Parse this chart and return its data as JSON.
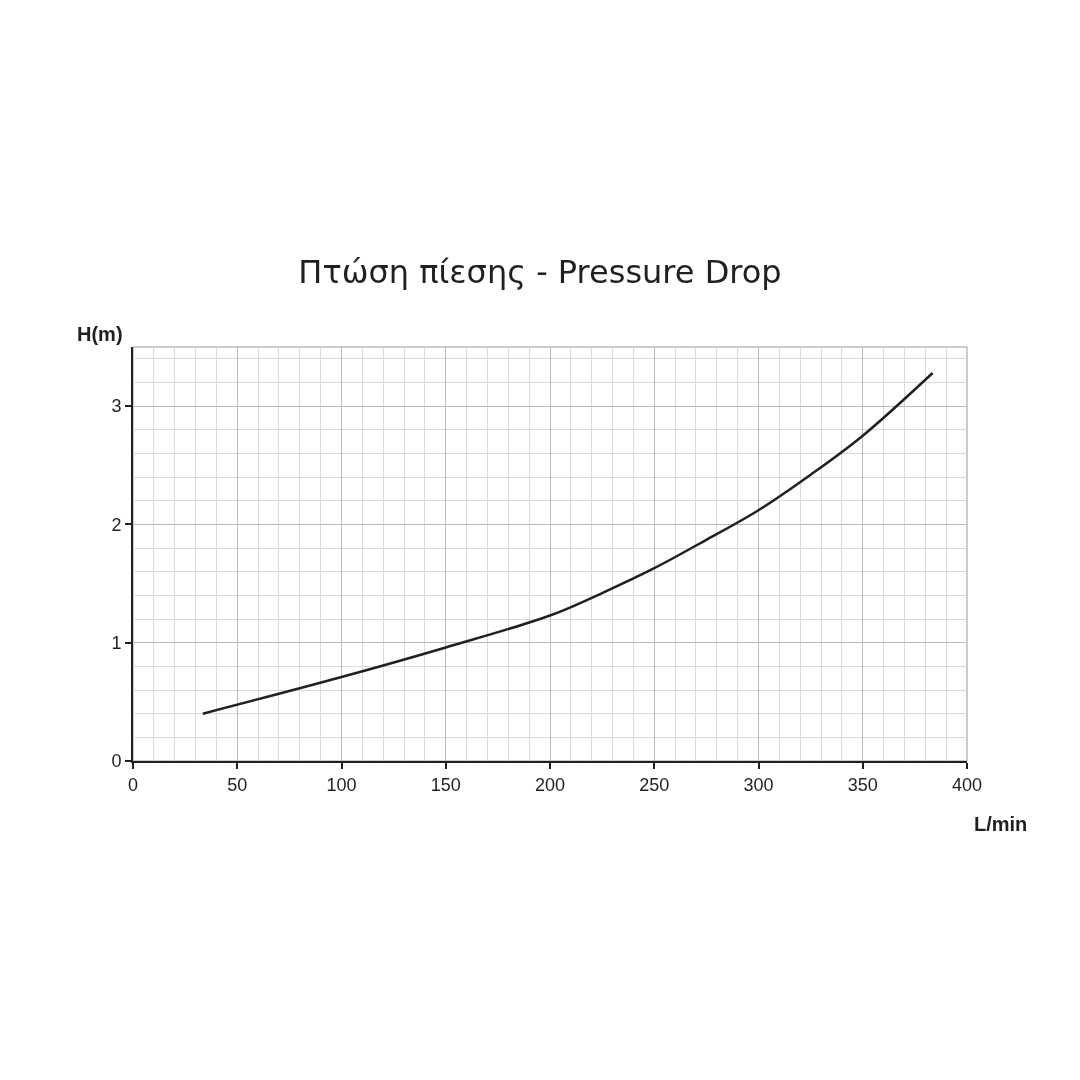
{
  "chart_data": {
    "type": "line",
    "title": "Πτώση πίεσης - Pressure Drop",
    "xlabel": "L/min",
    "ylabel": "H(m)",
    "x": [
      33.5,
      100,
      150,
      200,
      225,
      250,
      275,
      300,
      325,
      350,
      383.5
    ],
    "series": [
      {
        "color": "#231f20",
        "values": [
          0.4,
          0.71,
          0.96,
          1.23,
          1.42,
          1.63,
          1.87,
          2.12,
          2.42,
          2.75,
          3.28
        ]
      }
    ],
    "xlim": [
      0,
      400
    ],
    "xticks": [
      0,
      50,
      100,
      150,
      200,
      250,
      300,
      350,
      400
    ],
    "ylim": [
      0,
      3.5
    ],
    "yticks": [
      0,
      1,
      2,
      3
    ],
    "grid": true
  }
}
